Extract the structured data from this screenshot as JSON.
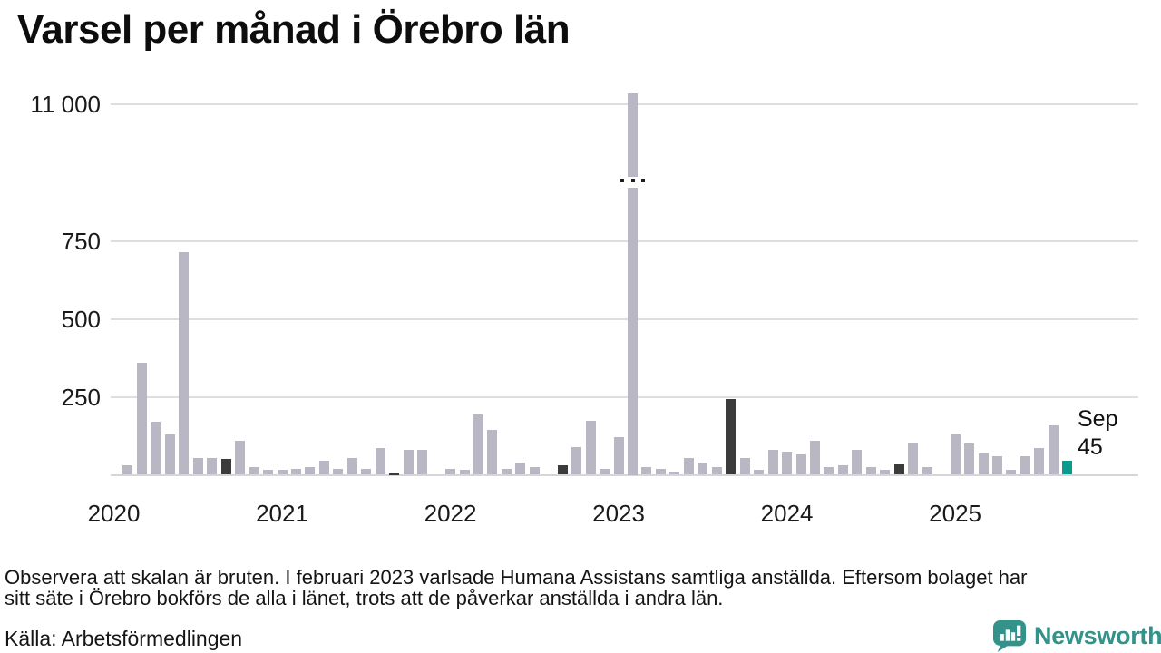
{
  "title": "Varsel per månad i Örebro län",
  "annotation": {
    "label": "Sep",
    "value": "45"
  },
  "footnote": {
    "line1": "Observera att skalan är bruten. I februari 2023 varlsade Humana Assistans samtliga anställda. Eftersom bolaget har",
    "line2": "sitt säte i Örebro bokförs de alla i länet, trots att de påverkar anställda i andra län."
  },
  "source": "Källa: Arbetsförmedlingen",
  "logo": {
    "text": "Newsworthy",
    "color": "#33928a"
  },
  "chart_data": {
    "type": "bar",
    "title": "Varsel per månad i Örebro län",
    "start_month": "2020-01",
    "x_unit": "month",
    "values": [
      0,
      30,
      360,
      170,
      130,
      715,
      55,
      55,
      50,
      110,
      25,
      15,
      15,
      20,
      25,
      45,
      20,
      55,
      20,
      85,
      5,
      80,
      80,
      0,
      20,
      15,
      195,
      145,
      20,
      40,
      25,
      0,
      30,
      90,
      175,
      20,
      120,
      11200,
      25,
      20,
      10,
      55,
      40,
      25,
      245,
      55,
      15,
      80,
      75,
      65,
      110,
      25,
      30,
      80,
      25,
      15,
      35,
      105,
      25,
      0,
      130,
      100,
      70,
      60,
      15,
      60,
      85,
      160,
      45
    ],
    "broken_axis": {
      "break_between": [
        750,
        11000
      ],
      "broken_bar_month": "2023-02",
      "broken_bar_value": 11200,
      "note": "scale is broken; Feb 2023 bar exceeds 11 000"
    },
    "yticks": [
      {
        "value": 250,
        "label": "250"
      },
      {
        "value": 500,
        "label": "500"
      },
      {
        "value": 750,
        "label": "750"
      },
      {
        "value": 11000,
        "label": "11 000"
      }
    ],
    "xticks": [
      {
        "label": "2020",
        "month_index": 0
      },
      {
        "label": "2021",
        "month_index": 12
      },
      {
        "label": "2022",
        "month_index": 24
      },
      {
        "label": "2023",
        "month_index": 36
      },
      {
        "label": "2024",
        "month_index": 48
      },
      {
        "label": "2025",
        "month_index": 60
      }
    ],
    "colors": {
      "bar": "#b9b7c3",
      "september": "#3b3b3b",
      "latest": "#0a9b8e",
      "gridline": "#dedde2"
    },
    "highlight_rule": "September bars dark; latest bar (Sep 2025) teal",
    "grid": true,
    "legend": false
  }
}
